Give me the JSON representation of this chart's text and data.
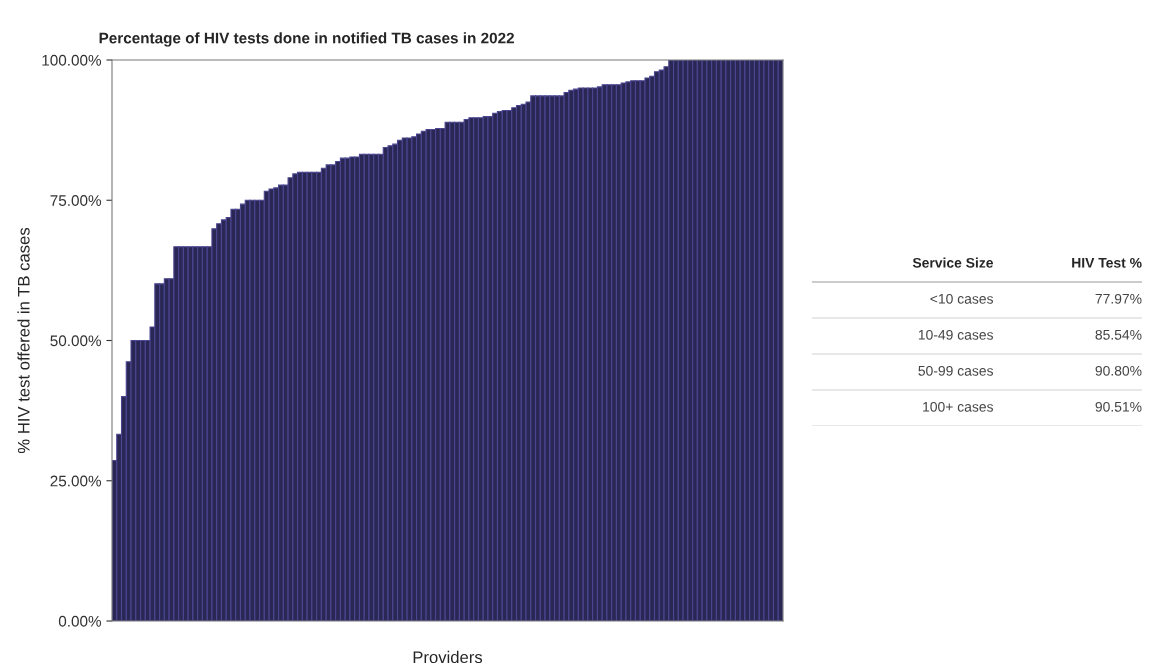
{
  "chart_data": [
    {
      "type": "bar",
      "title": "Percentage of HIV tests done in notified TB cases in 2022",
      "xlabel": "Providers",
      "ylabel": "% HIV test offered in TB cases",
      "color": "#2b2755",
      "categories": [
        null,
        null,
        null,
        null,
        null,
        null,
        null,
        null,
        null,
        null,
        null,
        null,
        null,
        null,
        null,
        null,
        null,
        null,
        null,
        null,
        null,
        null,
        null,
        null,
        null,
        null,
        null,
        null,
        null,
        null,
        null,
        null,
        null,
        null,
        null,
        null,
        null,
        null,
        null,
        null,
        null,
        null,
        null,
        null,
        null,
        null,
        null,
        null,
        null,
        null,
        null,
        null,
        null,
        null,
        null,
        null,
        null,
        null,
        null,
        null,
        null,
        null,
        null,
        null,
        null,
        null,
        null,
        null,
        null,
        null,
        null,
        null,
        null,
        null,
        null,
        null,
        null,
        null,
        null,
        null,
        null,
        null,
        null,
        null,
        null,
        null,
        null,
        null,
        null,
        null,
        null,
        null,
        null,
        null,
        null,
        null,
        null,
        null,
        null,
        null,
        null,
        null,
        null,
        null,
        null,
        null,
        null,
        null,
        null,
        null,
        null,
        null,
        null,
        null,
        null,
        null,
        null,
        null,
        null,
        null,
        null,
        null,
        null,
        null,
        null,
        null,
        null,
        null,
        null,
        null,
        null,
        null,
        null,
        null,
        null,
        null,
        null,
        null,
        null,
        null,
        null
      ],
      "values": [
        28.6,
        33.3,
        40.0,
        46.2,
        50,
        50,
        50,
        50,
        52.4,
        60.1,
        60.1,
        61.0,
        61.0,
        66.7,
        66.7,
        66.7,
        66.7,
        66.7,
        66.7,
        66.7,
        66.7,
        69.9,
        70.8,
        71.5,
        71.9,
        73.4,
        73.4,
        74.3,
        75.0,
        75.0,
        75.0,
        75.0,
        76.6,
        77.0,
        77.2,
        77.7,
        77.7,
        79.0,
        79.7,
        80.0,
        80.0,
        80.0,
        80.0,
        80.0,
        80.7,
        81.3,
        81.3,
        81.9,
        82.5,
        82.5,
        82.7,
        82.7,
        83.2,
        83.2,
        83.2,
        83.2,
        83.2,
        84.4,
        84.7,
        85.0,
        85.7,
        86.1,
        86.1,
        86.3,
        86.8,
        87.3,
        87.6,
        87.6,
        87.8,
        87.8,
        88.9,
        88.9,
        88.9,
        88.9,
        89.4,
        89.7,
        89.7,
        89.7,
        89.9,
        89.9,
        90.5,
        90.8,
        91.0,
        91.0,
        91.5,
        91.9,
        92.1,
        92.5,
        93.6,
        93.6,
        93.6,
        93.6,
        93.6,
        93.6,
        93.6,
        94.2,
        94.6,
        94.8,
        95.0,
        95.0,
        95.0,
        95.0,
        95.2,
        95.6,
        95.6,
        95.6,
        95.6,
        95.9,
        96.1,
        96.3,
        96.3,
        96.3,
        96.8,
        97.1,
        97.9,
        98.2,
        98.8,
        100,
        100,
        100,
        100,
        100,
        100,
        100,
        100,
        100,
        100,
        100,
        100,
        100,
        100,
        100,
        100,
        100,
        100,
        100,
        100,
        100,
        100,
        100,
        100
      ],
      "ylim": [
        0,
        100
      ],
      "yticks": [
        {
          "value": 0,
          "label": "0.00%"
        },
        {
          "value": 25,
          "label": "25.00%"
        },
        {
          "value": 50,
          "label": "50.00%"
        },
        {
          "value": 75,
          "label": "75.00%"
        },
        {
          "value": 100,
          "label": "100.00%"
        }
      ],
      "grid": false,
      "legend": false
    },
    {
      "type": "other",
      "xlabel": "Service Size",
      "ylabel": "HIV Test %",
      "categories": [
        "<10 cases",
        "10-49 cases",
        "50-99 cases",
        "100+ cases"
      ],
      "value_labels": [
        "77.97%",
        "85.54%",
        "90.80%",
        "90.51%"
      ]
    }
  ]
}
